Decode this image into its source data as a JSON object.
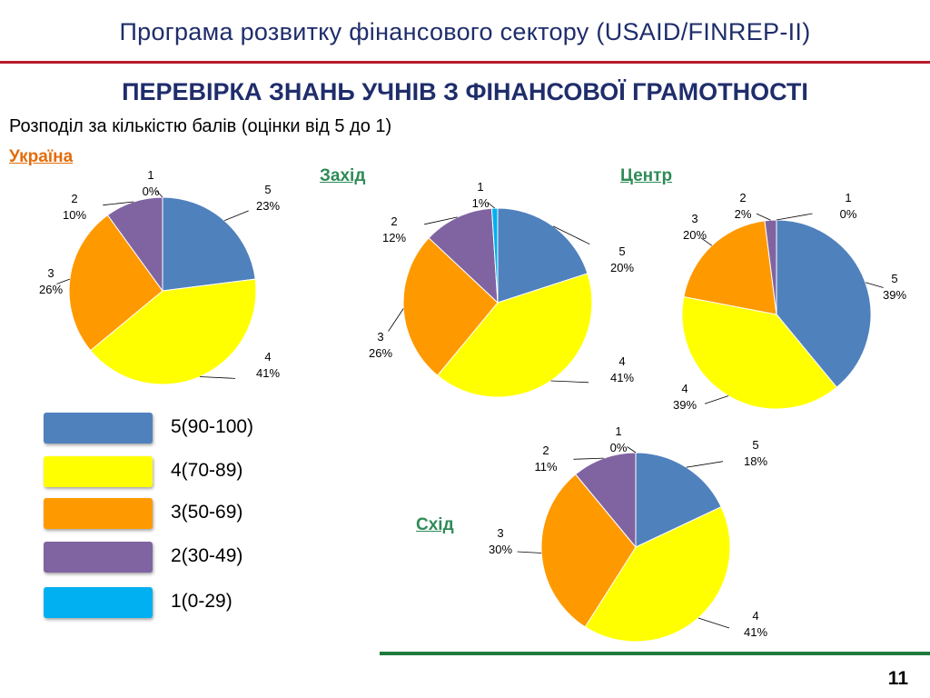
{
  "header": {
    "title": "Програма розвитку фінансового сектору (USAID/FINREP-II)"
  },
  "slide": {
    "title": "ПЕРЕВІРКА ЗНАНЬ УЧНІВ З ФІНАНСОВОЇ ГРАМОТНОСТІ",
    "subtitle": "Розподіл за кількістю балів (оцінки від 5 до 1)",
    "page_number": "11"
  },
  "colors": {
    "grade_5": "#4f81bd",
    "grade_4": "#ffff00",
    "grade_3": "#ff9900",
    "grade_2": "#8064a2",
    "grade_1": "#00b0f0",
    "header_red_rule": "#b71c2b",
    "footer_green_rule": "#1e7b3c",
    "region_label_green": "#2e8b57",
    "ukraine_label_orange": "#e46c0a"
  },
  "legend": [
    {
      "label": "5(90-100)",
      "color": "#4f81bd"
    },
    {
      "label": "4(70-89)",
      "color": "#ffff00"
    },
    {
      "label": "3(50-69)",
      "color": "#ff9900"
    },
    {
      "label": "2(30-49)",
      "color": "#8064a2"
    },
    {
      "label": "1(0-29)",
      "color": "#00b0f0"
    }
  ],
  "chart_data": [
    {
      "type": "pie",
      "title": "Україна",
      "categories": [
        "5",
        "4",
        "3",
        "2",
        "1"
      ],
      "values": [
        23,
        41,
        26,
        10,
        0
      ],
      "labels": [
        "23%",
        "41%",
        "26%",
        "10%",
        "0%"
      ]
    },
    {
      "type": "pie",
      "title": "Захід",
      "categories": [
        "5",
        "4",
        "3",
        "2",
        "1"
      ],
      "values": [
        20,
        41,
        26,
        12,
        1
      ],
      "labels": [
        "20%",
        "41%",
        "26%",
        "12%",
        "1%"
      ]
    },
    {
      "type": "pie",
      "title": "Центр",
      "categories": [
        "5",
        "4",
        "3",
        "2",
        "1"
      ],
      "values": [
        39,
        39,
        20,
        2,
        0
      ],
      "labels": [
        "39%",
        "39%",
        "20%",
        "2%",
        "0%"
      ]
    },
    {
      "type": "pie",
      "title": "Схід",
      "categories": [
        "5",
        "4",
        "3",
        "2",
        "1"
      ],
      "values": [
        18,
        41,
        30,
        11,
        0
      ],
      "labels": [
        "18%",
        "41%",
        "30%",
        "11%",
        "0%"
      ]
    }
  ]
}
